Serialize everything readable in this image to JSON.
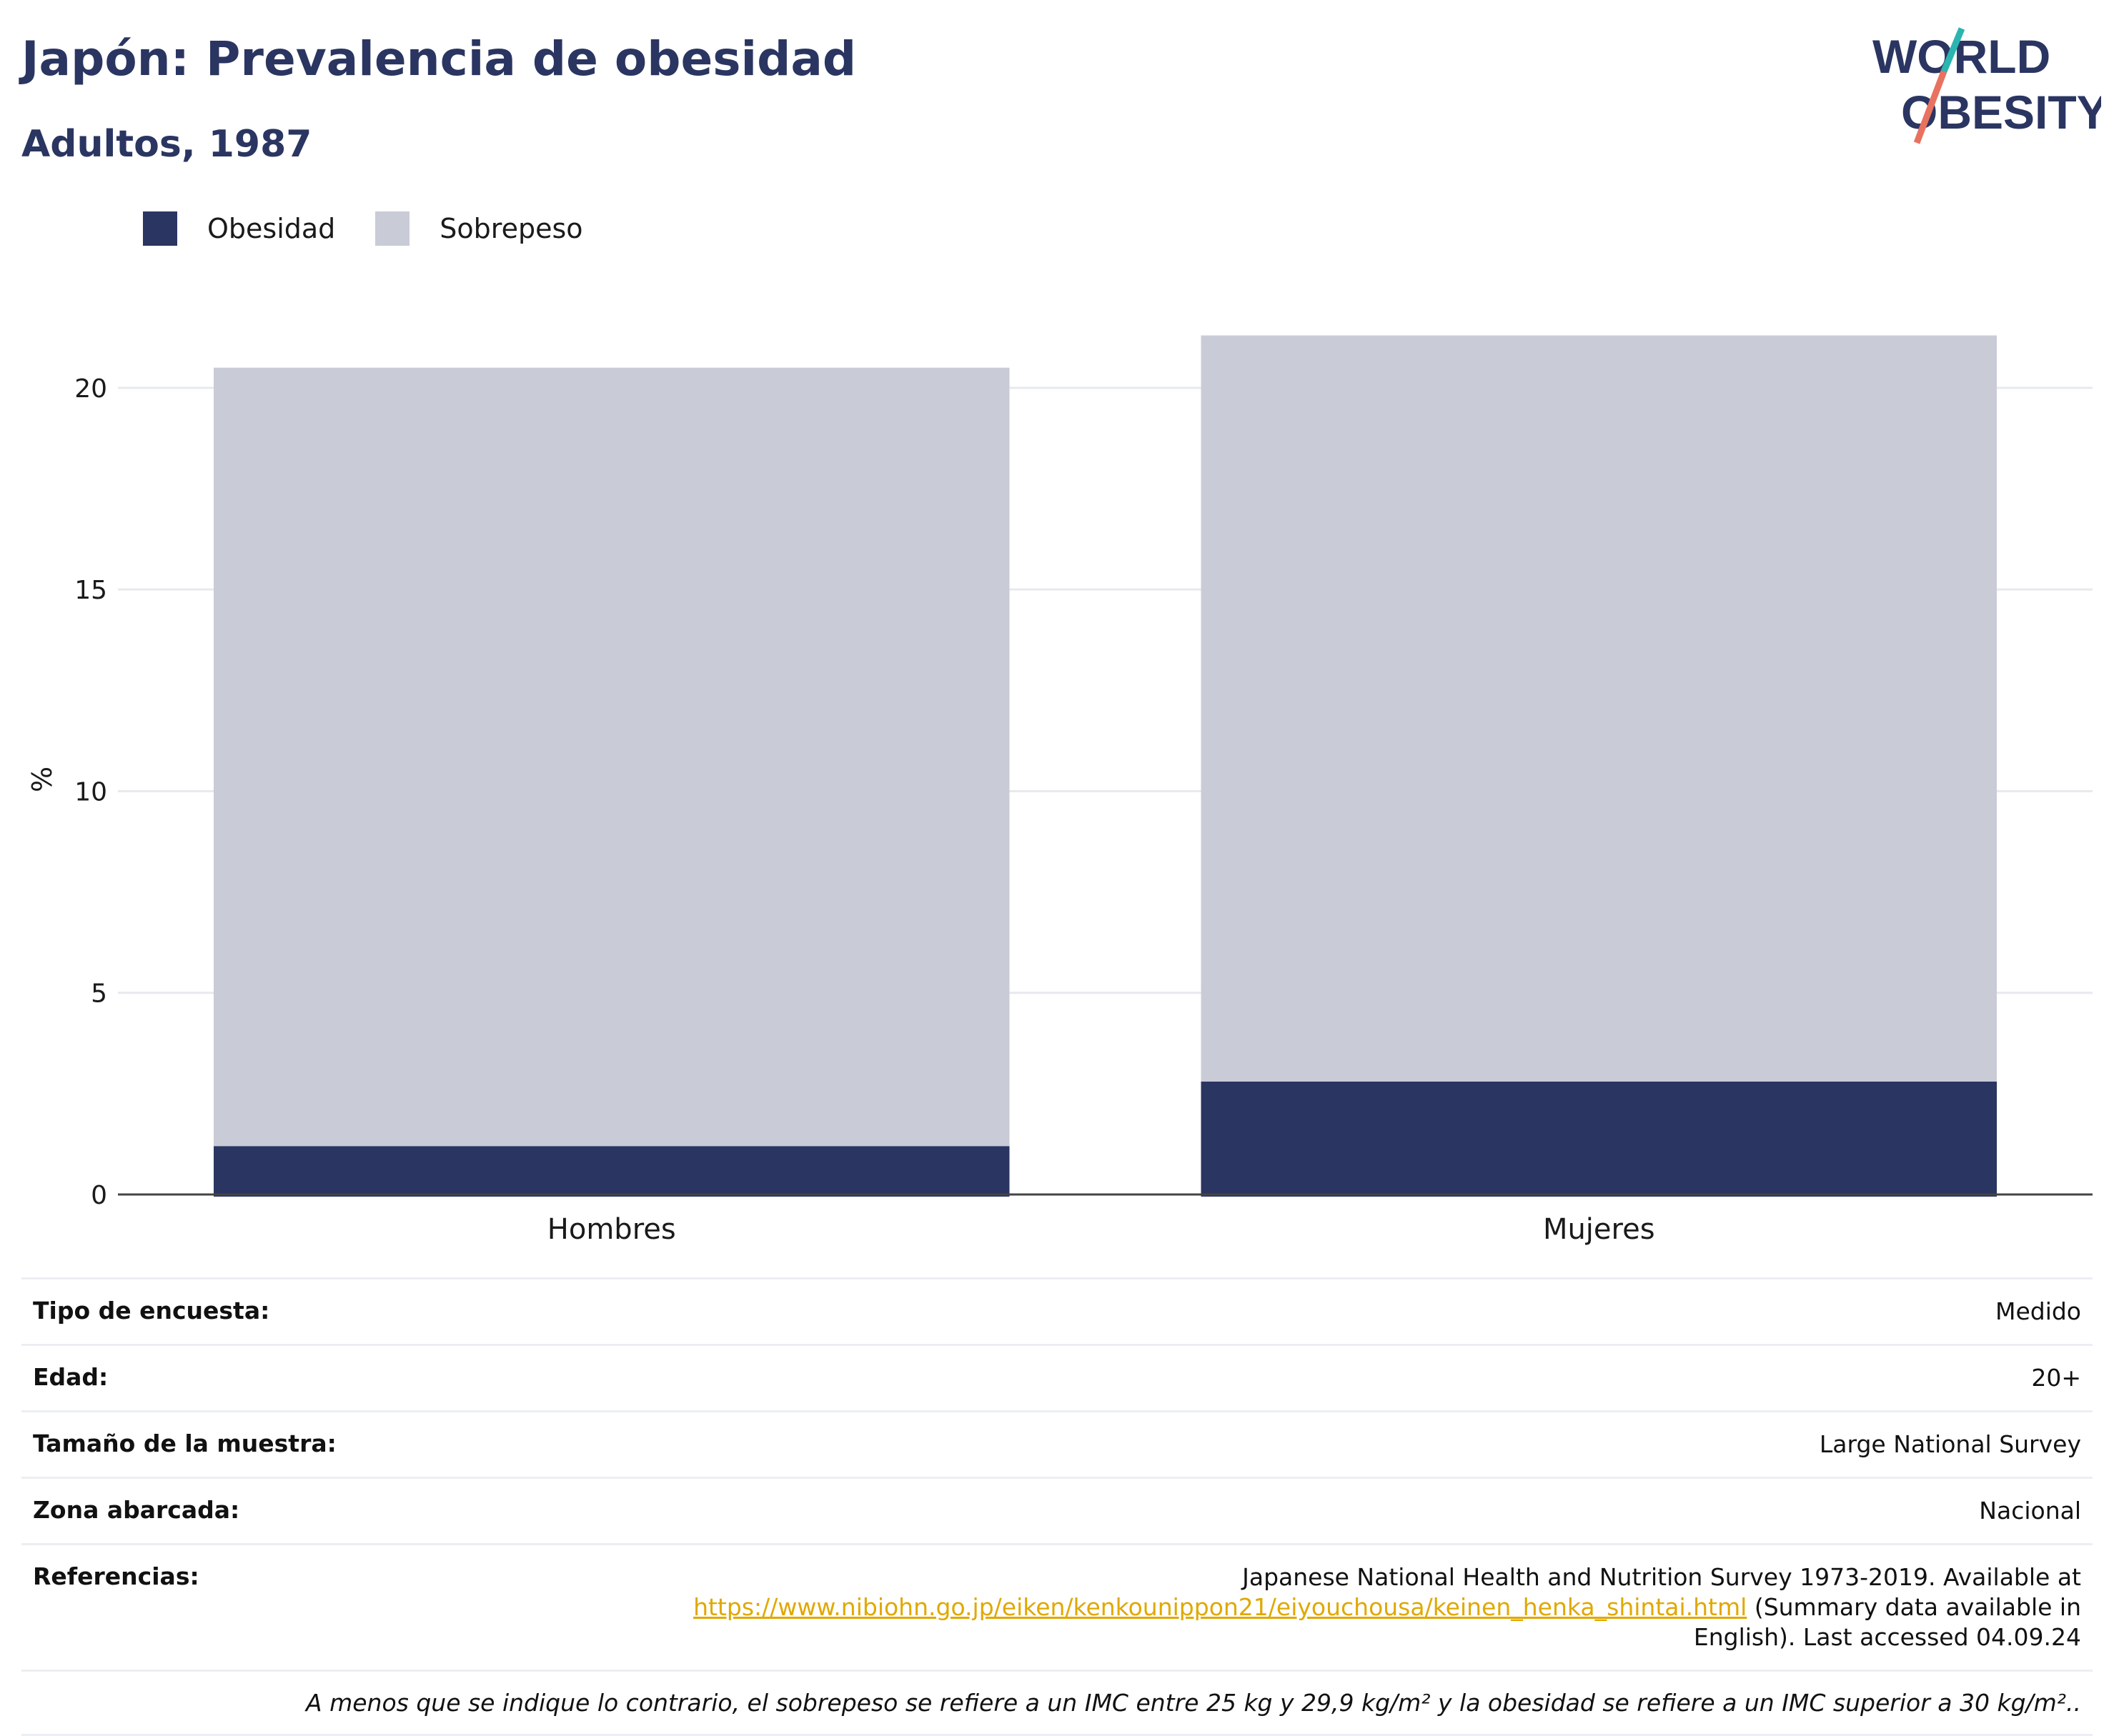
{
  "header": {
    "title": "Japón: Prevalencia de obesidad",
    "subtitle": "Adultos, 1987"
  },
  "logo": {
    "line1": "WORLD",
    "line2": "OBESITY",
    "colors": {
      "text": "#2a3561",
      "slash_teal": "#2bb5b0",
      "slash_coral": "#e8725f"
    }
  },
  "legend": {
    "items": [
      {
        "label": "Obesidad",
        "color": "#2a3561"
      },
      {
        "label": "Sobrepeso",
        "color": "#c9cbd7"
      }
    ]
  },
  "chart_data": {
    "type": "bar",
    "stacked": true,
    "categories": [
      "Hombres",
      "Mujeres"
    ],
    "series": [
      {
        "name": "Obesidad",
        "color": "#2a3561",
        "values": [
          1.2,
          2.8
        ]
      },
      {
        "name": "Sobrepeso",
        "color": "#c9cbd7",
        "values": [
          19.3,
          18.5
        ]
      }
    ],
    "ylabel": "%",
    "ylim": [
      0,
      22
    ],
    "yticks": [
      0,
      5,
      10,
      15,
      20
    ],
    "grid": true,
    "legend_position": "top-left"
  },
  "info": {
    "rows": [
      {
        "key": "Tipo de encuesta:",
        "value": "Medido"
      },
      {
        "key": "Edad:",
        "value": "20+"
      },
      {
        "key": "Tamaño de la muestra:",
        "value": "Large National Survey"
      },
      {
        "key": "Zona abarcada:",
        "value": "Nacional"
      }
    ],
    "references": {
      "key": "Referencias:",
      "text_before": "Japanese National Health and Nutrition Survey 1973-2019. Available at",
      "link": "https://www.nibiohn.go.jp/eiken/kenkounippon21/eiyouchousa/keinen_henka_shintai.html",
      "text_after": " (Summary data available in English). Last accessed 04.09.24"
    },
    "footnote": "A menos que se indique lo contrario, el sobrepeso se refiere a un IMC entre 25 kg y 29,9 kg/m² y la obesidad se refiere a un IMC superior a 30 kg/m².."
  }
}
